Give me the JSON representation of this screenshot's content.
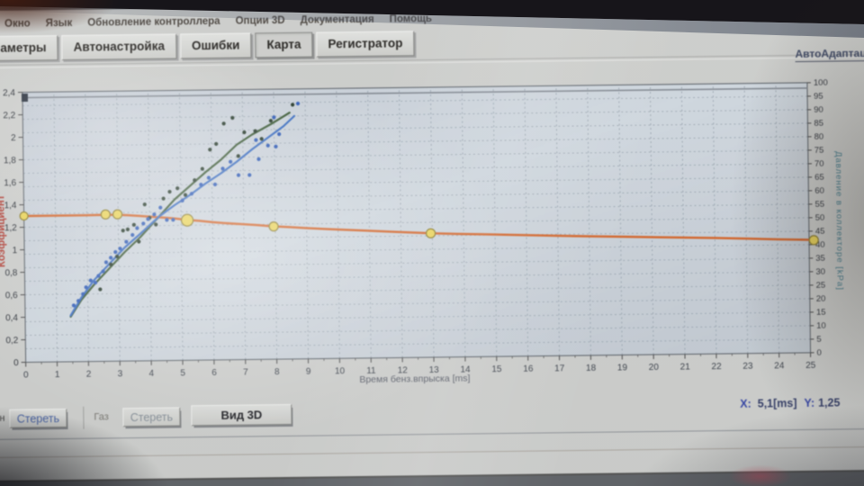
{
  "menu": {
    "items": [
      "Окно",
      "Язык",
      "Обновление контроллера",
      "Опции 3D",
      "Документация",
      "Помощь"
    ]
  },
  "tabs": {
    "items": [
      {
        "label": "аметры"
      },
      {
        "label": "Автонастройка"
      },
      {
        "label": "Ошибки"
      },
      {
        "label": "Карта",
        "active": true
      },
      {
        "label": "Регистратор"
      }
    ]
  },
  "autoadapt_link": "АвтоАдаптаци",
  "footer": {
    "fuel_label": "н",
    "erase_petrol": "Стереть",
    "gas_label": "Газ",
    "erase_gas": "Стереть",
    "view3d": "Вид 3D",
    "cursor": {
      "x_label": "X:",
      "x_value": "5,1[ms]",
      "y_label": "Y:",
      "y_value": "1,25"
    }
  },
  "chart_data": {
    "type": "line",
    "title": "",
    "xlabel": "Время бенз.впрыска [ms]",
    "grid": true,
    "legend": "none",
    "axes": {
      "x": {
        "min": 0,
        "max": 25,
        "tick_step": 1,
        "labels": [
          "0",
          "1",
          "2",
          "3",
          "4",
          "5",
          "6",
          "7",
          "8",
          "9",
          "10",
          "11",
          "12",
          "13",
          "14",
          "15",
          "16",
          "17",
          "18",
          "19",
          "20",
          "21",
          "22",
          "23",
          "24",
          "25"
        ],
        "title": "Время бенз.впрыска [ms]"
      },
      "left": {
        "min": 0,
        "max": 2.4,
        "tick_step": 0.2,
        "labels": [
          "0",
          "0,2",
          "0,4",
          "0,6",
          "0,8",
          "1",
          "1,2",
          "1,4",
          "1,6",
          "1,8",
          "2",
          "2,2",
          "2,4"
        ],
        "title": "Коэффициент",
        "color": "#c23b2e"
      },
      "right": {
        "min": 0,
        "max": 100,
        "tick_step": 5,
        "labels": [
          "0",
          "5",
          "10",
          "15",
          "20",
          "25",
          "30",
          "35",
          "40",
          "45",
          "50",
          "55",
          "60",
          "65",
          "70",
          "75",
          "80",
          "85",
          "90",
          "95",
          "100"
        ],
        "title": "Давление в коллекторе [kPa]",
        "color": "#3d7f91"
      }
    },
    "colors": {
      "plot_bg": "#cdd6df",
      "grid": "#93a0ad",
      "frame": "#5d646c"
    },
    "series": [
      {
        "name": "limit-line",
        "type": "line",
        "color": "#7b828c",
        "width": 1.4,
        "points": [
          [
            0,
            2.352
          ],
          [
            25,
            2.352
          ]
        ]
      },
      {
        "name": "pressure-line",
        "type": "line",
        "color": "#e4611b",
        "width": 2.6,
        "points": [
          [
            0,
            1.3
          ],
          [
            1,
            1.3
          ],
          [
            2,
            1.3
          ],
          [
            2.6,
            1.302
          ],
          [
            3,
            1.3
          ],
          [
            3.3,
            1.296
          ],
          [
            3.7,
            1.288
          ],
          [
            4,
            1.281
          ],
          [
            4.4,
            1.272
          ],
          [
            4.8,
            1.262
          ],
          [
            5.2,
            1.248
          ],
          [
            5.6,
            1.238
          ],
          [
            6,
            1.225
          ],
          [
            6.4,
            1.215
          ],
          [
            6.9,
            1.205
          ],
          [
            7.4,
            1.195
          ],
          [
            7.9,
            1.182
          ],
          [
            8.5,
            1.172
          ],
          [
            9,
            1.162
          ],
          [
            9.6,
            1.152
          ],
          [
            10.2,
            1.143
          ],
          [
            10.9,
            1.133
          ],
          [
            11.6,
            1.122
          ],
          [
            12.3,
            1.112
          ],
          [
            13,
            1.102
          ],
          [
            13.8,
            1.094
          ],
          [
            14.6,
            1.088
          ],
          [
            15.5,
            1.08
          ],
          [
            16.4,
            1.072
          ],
          [
            17.3,
            1.064
          ],
          [
            18.2,
            1.057
          ],
          [
            19.1,
            1.051
          ],
          [
            20,
            1.044
          ],
          [
            21,
            1.037
          ],
          [
            22,
            1.03
          ],
          [
            23,
            1.021
          ],
          [
            24,
            1.011
          ],
          [
            25.2,
            1.002
          ]
        ]
      },
      {
        "name": "petrol-curve",
        "type": "line",
        "color": "#33572b",
        "width": 2.2,
        "points": [
          [
            1.45,
            0.4
          ],
          [
            1.8,
            0.55
          ],
          [
            2.2,
            0.68
          ],
          [
            2.75,
            0.84
          ],
          [
            3.2,
            0.97
          ],
          [
            3.7,
            1.1
          ],
          [
            4.3,
            1.28
          ],
          [
            4.8,
            1.43
          ],
          [
            5.3,
            1.55
          ],
          [
            5.8,
            1.67
          ],
          [
            6.3,
            1.78
          ],
          [
            6.8,
            1.91
          ],
          [
            7.3,
            2.0
          ],
          [
            7.9,
            2.09
          ],
          [
            8.5,
            2.19
          ]
        ]
      },
      {
        "name": "gas-curve",
        "type": "line",
        "color": "#2e6ace",
        "width": 2.2,
        "points": [
          [
            1.45,
            0.41
          ],
          [
            1.8,
            0.57
          ],
          [
            2.2,
            0.72
          ],
          [
            2.75,
            0.88
          ],
          [
            3.2,
            1.01
          ],
          [
            3.7,
            1.13
          ],
          [
            4.3,
            1.28
          ],
          [
            4.8,
            1.38
          ],
          [
            5.3,
            1.47
          ],
          [
            5.8,
            1.57
          ],
          [
            6.3,
            1.66
          ],
          [
            6.8,
            1.76
          ],
          [
            7.3,
            1.87
          ],
          [
            7.9,
            1.99
          ],
          [
            8.3,
            2.07
          ],
          [
            8.65,
            2.16
          ]
        ]
      },
      {
        "name": "petrol-dots",
        "type": "scatter",
        "color": "#1c3320",
        "size": 2.1,
        "points": [
          [
            2.4,
            0.64
          ],
          [
            2.75,
            0.86
          ],
          [
            2.95,
            0.93
          ],
          [
            3.15,
            1.16
          ],
          [
            3.3,
            1.17
          ],
          [
            3.5,
            1.21
          ],
          [
            3.65,
            1.06
          ],
          [
            3.85,
            1.39
          ],
          [
            4.0,
            1.27
          ],
          [
            4.2,
            1.21
          ],
          [
            4.45,
            1.44
          ],
          [
            4.65,
            1.5
          ],
          [
            4.9,
            1.53
          ],
          [
            5.15,
            1.47
          ],
          [
            5.45,
            1.6
          ],
          [
            5.7,
            1.7
          ],
          [
            5.95,
            1.87
          ],
          [
            6.15,
            1.92
          ],
          [
            6.4,
            2.1
          ],
          [
            6.68,
            2.15
          ],
          [
            6.85,
            1.81
          ],
          [
            7.05,
            2.02
          ],
          [
            7.4,
            2.03
          ],
          [
            7.6,
            1.96
          ],
          [
            7.9,
            2.12
          ],
          [
            8.6,
            2.26
          ]
        ]
      },
      {
        "name": "gas-dots",
        "type": "scatter",
        "color": "#2257c4",
        "size": 2.1,
        "points": [
          [
            1.55,
            0.5
          ],
          [
            1.7,
            0.54
          ],
          [
            1.85,
            0.6
          ],
          [
            1.95,
            0.66
          ],
          [
            2.1,
            0.72
          ],
          [
            2.25,
            0.7
          ],
          [
            2.35,
            0.76
          ],
          [
            2.5,
            0.8
          ],
          [
            2.6,
            0.88
          ],
          [
            2.75,
            0.92
          ],
          [
            2.9,
            0.97
          ],
          [
            3.05,
            1.0
          ],
          [
            3.25,
            1.06
          ],
          [
            3.45,
            1.12
          ],
          [
            3.6,
            1.18
          ],
          [
            3.8,
            1.22
          ],
          [
            3.95,
            1.26
          ],
          [
            4.15,
            1.3
          ],
          [
            4.35,
            1.36
          ],
          [
            4.55,
            1.25
          ],
          [
            4.75,
            1.25
          ],
          [
            5.05,
            1.42
          ],
          [
            5.35,
            1.48
          ],
          [
            5.65,
            1.56
          ],
          [
            5.9,
            1.62
          ],
          [
            6.1,
            1.56
          ],
          [
            6.35,
            1.7
          ],
          [
            6.6,
            1.76
          ],
          [
            6.85,
            1.64
          ],
          [
            7.2,
            1.64
          ],
          [
            7.42,
            1.95
          ],
          [
            7.5,
            1.78
          ],
          [
            7.8,
            1.9
          ],
          [
            8.05,
            1.89
          ],
          [
            8.0,
            2.15
          ],
          [
            8.16,
            2.0
          ],
          [
            8.77,
            2.27
          ]
        ]
      },
      {
        "name": "map-markers",
        "type": "markers",
        "color": "#f3d844",
        "stroke": "#8f7d1d",
        "points": [
          [
            0,
            1.3,
            4.5
          ],
          [
            2.6,
            1.305,
            5
          ],
          [
            2.98,
            1.305,
            5
          ],
          [
            5.2,
            1.245,
            6.5
          ],
          [
            7.95,
            1.18,
            5
          ],
          [
            12.95,
            1.102,
            5
          ],
          [
            25.15,
            1.0,
            5
          ]
        ]
      },
      {
        "name": "pin-marker",
        "type": "pin",
        "color": "#232c3a",
        "points": [
          [
            0.07,
            2.352
          ]
        ]
      }
    ],
    "selected_point": {
      "x_ms": "5,1",
      "coeff": "1,25"
    }
  }
}
